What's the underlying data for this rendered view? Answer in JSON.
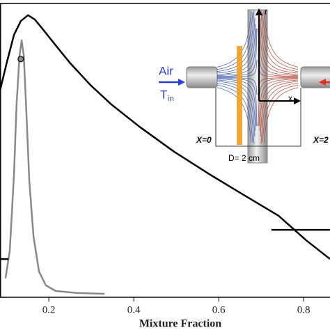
{
  "chart_data": {
    "type": "line",
    "x_label": "Mixture Fraction",
    "xlim": [
      0.085,
      0.862
    ],
    "ylim": [
      0,
      1
    ],
    "xticks": [
      0.2,
      0.4,
      0.6,
      0.8
    ],
    "series": [
      {
        "name": null,
        "color": "#000000",
        "style": "line",
        "x": [
          0.085,
          0.101,
          0.118,
          0.134,
          0.151,
          0.167,
          0.183,
          0.216,
          0.249,
          0.298,
          0.347,
          0.413,
          0.495,
          0.577,
          0.659,
          0.741,
          0.806,
          0.862
        ],
        "values": [
          0.702,
          0.798,
          0.893,
          0.94,
          0.96,
          0.945,
          0.917,
          0.857,
          0.798,
          0.721,
          0.655,
          0.579,
          0.493,
          0.417,
          0.345,
          0.274,
          0.19,
          0.126
        ]
      },
      {
        "name": null,
        "color": "#888888",
        "style": "line",
        "x": [
          0.098,
          0.108,
          0.118,
          0.124,
          0.131,
          0.136,
          0.141,
          0.147,
          0.154,
          0.164,
          0.177,
          0.193,
          0.216,
          0.265,
          0.331
        ],
        "values": [
          0.06,
          0.155,
          0.417,
          0.655,
          0.821,
          0.874,
          0.821,
          0.631,
          0.393,
          0.202,
          0.083,
          0.036,
          0.017,
          0.01,
          0.007
        ]
      },
      {
        "name": null,
        "color": "#000000",
        "style": "line",
        "x": [
          0.085,
          0.105
        ],
        "values": [
          0.126,
          0.126
        ]
      },
      {
        "name": null,
        "color": "#000000",
        "style": "line",
        "x": [
          0.724,
          0.862
        ],
        "values": [
          0.226,
          0.226
        ]
      },
      {
        "name": null,
        "color": "#888888",
        "style": "marker",
        "x": [
          0.134
        ],
        "values": [
          0.81
        ]
      }
    ],
    "annotations": [
      "Air",
      "T",
      "in",
      "X=0",
      "X=2",
      "D= 2 cm",
      "r",
      "x"
    ]
  }
}
